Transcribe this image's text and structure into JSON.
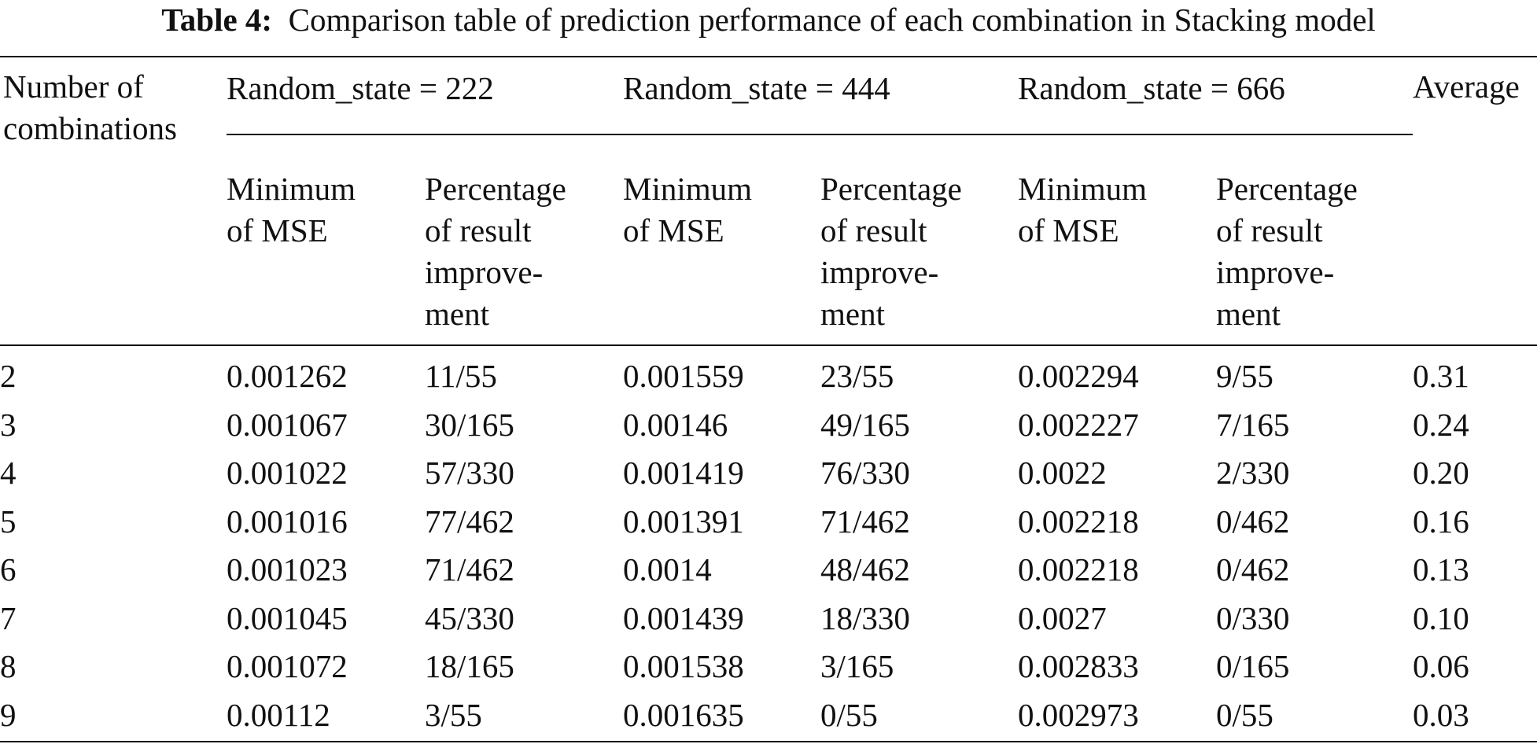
{
  "caption": {
    "label": "Table 4:",
    "text": "Comparison table of prediction performance of each combination in Stacking model"
  },
  "header": {
    "col0": "Number of\ncombinations",
    "group1": "Random_state = 222",
    "group2": "Random_state = 444",
    "group3": "Random_state = 666",
    "average": "Average",
    "min_mse": "Minimum\nof MSE",
    "pct": "Percentage\nof result\nimprove-\nment"
  },
  "rows": [
    {
      "n": "2",
      "mse222": "0.001262",
      "pct222": "11/55",
      "mse444": "0.001559",
      "pct444": "23/55",
      "mse666": "0.002294",
      "pct666": "9/55",
      "avg": "0.31"
    },
    {
      "n": "3",
      "mse222": "0.001067",
      "pct222": "30/165",
      "mse444": "0.00146",
      "pct444": "49/165",
      "mse666": "0.002227",
      "pct666": "7/165",
      "avg": "0.24"
    },
    {
      "n": "4",
      "mse222": "0.001022",
      "pct222": "57/330",
      "mse444": "0.001419",
      "pct444": "76/330",
      "mse666": "0.0022",
      "pct666": "2/330",
      "avg": "0.20"
    },
    {
      "n": "5",
      "mse222": "0.001016",
      "pct222": "77/462",
      "mse444": "0.001391",
      "pct444": "71/462",
      "mse666": "0.002218",
      "pct666": "0/462",
      "avg": "0.16"
    },
    {
      "n": "6",
      "mse222": "0.001023",
      "pct222": "71/462",
      "mse444": "0.0014",
      "pct444": "48/462",
      "mse666": "0.002218",
      "pct666": "0/462",
      "avg": "0.13"
    },
    {
      "n": "7",
      "mse222": "0.001045",
      "pct222": "45/330",
      "mse444": "0.001439",
      "pct444": "18/330",
      "mse666": "0.0027",
      "pct666": "0/330",
      "avg": "0.10"
    },
    {
      "n": "8",
      "mse222": "0.001072",
      "pct222": "18/165",
      "mse444": "0.001538",
      "pct444": "3/165",
      "mse666": "0.002833",
      "pct666": "0/165",
      "avg": "0.06"
    },
    {
      "n": "9",
      "mse222": "0.00112",
      "pct222": "3/55",
      "mse444": "0.001635",
      "pct444": "0/55",
      "mse666": "0.002973",
      "pct666": "0/55",
      "avg": "0.03"
    }
  ]
}
